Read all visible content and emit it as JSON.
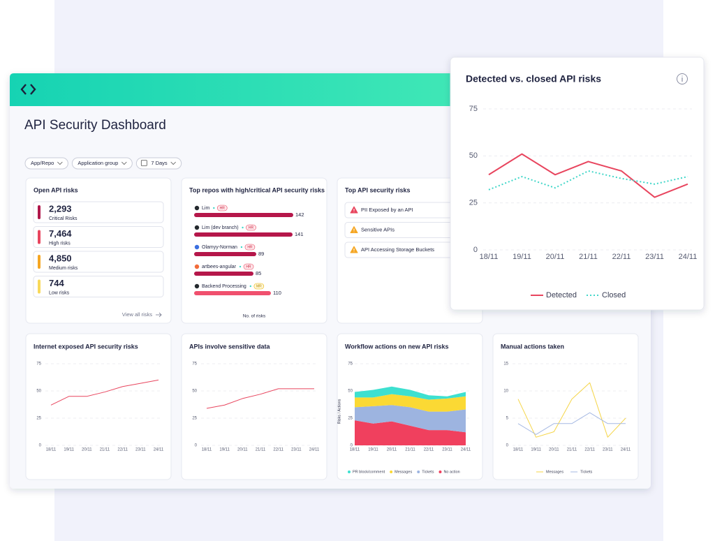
{
  "header": {
    "title": "API Security Dashboard"
  },
  "filters": [
    "App/Repo",
    "Application group",
    "7 Days"
  ],
  "open_risks": {
    "title": "Open API risks",
    "items": [
      {
        "value": "2,293",
        "label": "Critical Risks",
        "color": "#b0174a"
      },
      {
        "value": "7,464",
        "label": "High risks",
        "color": "#e8455e"
      },
      {
        "value": "4,850",
        "label": "Medium risks",
        "color": "#f5a623"
      },
      {
        "value": "744",
        "label": "Low risks",
        "color": "#f8d95a"
      }
    ],
    "link": "View all risks"
  },
  "top_security_risks": {
    "title": "Top API security risks",
    "items": [
      {
        "label": "PII Exposed by an API",
        "icon_color": "#e8455e"
      },
      {
        "label": "Sensitive APIs",
        "icon_color": "#f5a623"
      },
      {
        "label": "API Accessing Storage Buckets",
        "icon_color": "#f5a623"
      }
    ]
  },
  "chart_data": [
    {
      "type": "line",
      "title": "Detected vs. closed API risks",
      "categories": [
        "18/11",
        "19/11",
        "20/11",
        "21/11",
        "22/11",
        "23/11",
        "24/11"
      ],
      "series": [
        {
          "name": "Detected",
          "color": "#e8455e",
          "style": "solid",
          "values": [
            40,
            51,
            40,
            47,
            42,
            28,
            35
          ]
        },
        {
          "name": "Closed",
          "color": "#3fd6c8",
          "style": "dotted",
          "values": [
            32,
            39,
            33,
            42,
            38,
            35,
            39
          ]
        }
      ],
      "ylim": [
        0,
        75
      ],
      "yticks": [
        0,
        25,
        50,
        75
      ],
      "grid": true
    },
    {
      "type": "line",
      "title": "Internet exposed API security risks",
      "categories": [
        "18/11",
        "19/11",
        "20/11",
        "21/11",
        "22/11",
        "23/11",
        "24/11"
      ],
      "values": [
        37,
        45,
        45,
        49,
        54,
        57,
        60
      ],
      "color": "#e8455e",
      "ylim": [
        0,
        75
      ],
      "yticks": [
        0,
        25,
        50,
        75
      ],
      "grid": true
    },
    {
      "type": "line",
      "title": "APIs involve sensitive data",
      "categories": [
        "18/11",
        "19/11",
        "20/11",
        "21/11",
        "22/11",
        "23/11",
        "24/11"
      ],
      "values": [
        34,
        37,
        43,
        47,
        52,
        52,
        52
      ],
      "color": "#e8455e",
      "ylim": [
        0,
        75
      ],
      "yticks": [
        0,
        25,
        50,
        75
      ],
      "grid": true
    },
    {
      "type": "area",
      "stacked": true,
      "title": "Workflow actions on new API risks",
      "y_label": "Risks / Actions",
      "categories": [
        "18/11",
        "19/11",
        "20/11",
        "21/11",
        "22/11",
        "23/11",
        "24/11"
      ],
      "series": [
        {
          "name": "No action",
          "color": "#f0405e",
          "values": [
            23,
            20,
            22,
            18,
            14,
            14,
            12
          ]
        },
        {
          "name": "Tickets",
          "color": "#9db4e0",
          "values": [
            12,
            16,
            15,
            17,
            17,
            17,
            21
          ]
        },
        {
          "name": "Messages",
          "color": "#fbd934",
          "values": [
            9,
            8,
            10,
            10,
            11,
            12,
            12
          ]
        },
        {
          "name": "PR block/comment",
          "color": "#3de0d0",
          "values": [
            5,
            7,
            7,
            6,
            4,
            2,
            4
          ]
        }
      ],
      "ylim": [
        0,
        75
      ],
      "yticks": [
        0,
        25,
        50,
        75
      ],
      "grid": true
    },
    {
      "type": "line",
      "title": "Manual actions taken",
      "categories": [
        "18/11",
        "19/11",
        "20/11",
        "21/11",
        "22/11",
        "23/11",
        "24/11"
      ],
      "series": [
        {
          "name": "Messages",
          "color": "#f5d547",
          "style": "solid",
          "values": [
            8.5,
            1.5,
            2.5,
            8.5,
            11.5,
            1.5,
            5
          ]
        },
        {
          "name": "Tickets",
          "color": "#a6b9e3",
          "style": "solid",
          "values": [
            4,
            2,
            4,
            4,
            6,
            4,
            4
          ]
        }
      ],
      "ylim": [
        0,
        15
      ],
      "yticks": [
        0,
        5,
        10,
        15
      ],
      "grid": true
    },
    {
      "type": "bar",
      "orientation": "horizontal",
      "title": "Top repos with high/critical API security risks",
      "categories": [
        "Lim",
        "Lim (dev branch)",
        "Olamyy-Norman",
        "artbees-angular",
        "Backend Processing"
      ],
      "badges": [
        "HR",
        "HR",
        "HR",
        "HR",
        "MR"
      ],
      "values": [
        142,
        141,
        89,
        85,
        110
      ],
      "colors": [
        "#b5174a",
        "#b5174a",
        "#b5174a",
        "#b5174a",
        "#f0506e"
      ],
      "x_label": "No. of risks"
    }
  ]
}
